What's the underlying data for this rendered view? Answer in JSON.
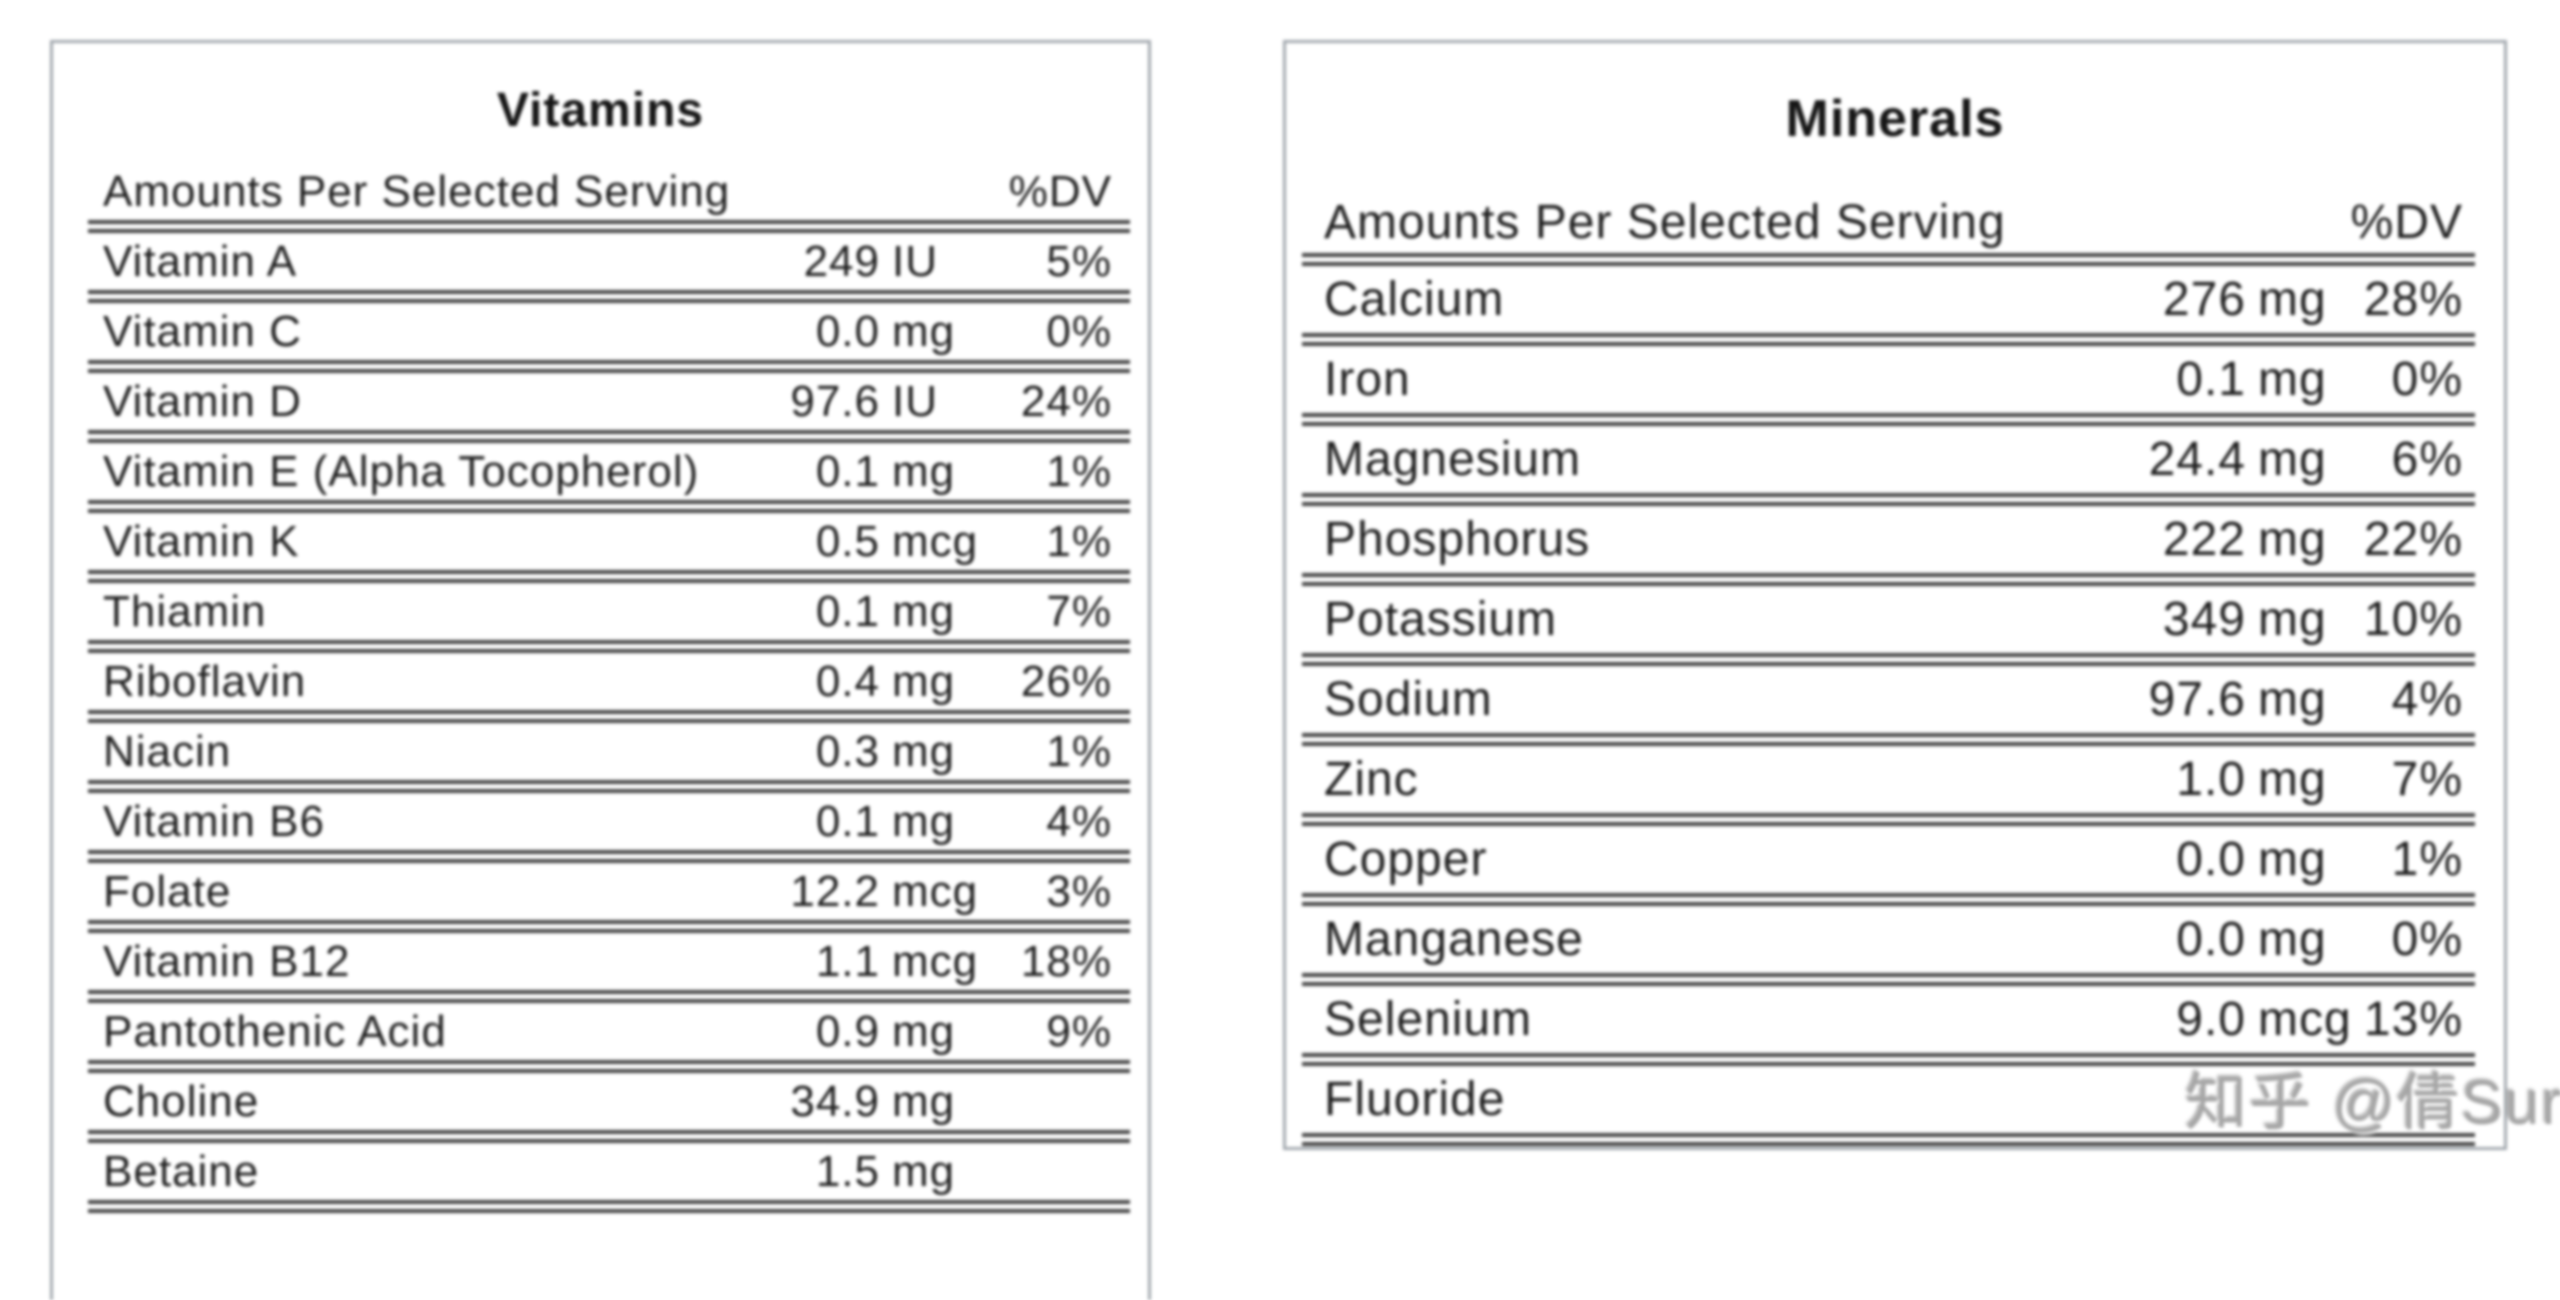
{
  "watermark": {
    "text": "知乎 @倩Sur"
  },
  "colors": {
    "text": "#1f1f1f",
    "rule": "#454545",
    "box_border": "#a3a9af",
    "watermark": "#a6a6a6",
    "background": "#ffffff"
  },
  "tables": [
    {
      "title": "Vitamins",
      "header": {
        "label": "Amounts Per Selected Serving",
        "dv_label": "%DV"
      },
      "rows": [
        {
          "label": "Vitamin A",
          "num": "249",
          "unit": "IU",
          "dv": "5%"
        },
        {
          "label": "Vitamin C",
          "num": "0.0",
          "unit": "mg",
          "dv": "0%"
        },
        {
          "label": "Vitamin D",
          "num": "97.6",
          "unit": "IU",
          "dv": "24%"
        },
        {
          "label": "Vitamin E (Alpha Tocopherol)",
          "num": "0.1",
          "unit": "mg",
          "dv": "1%"
        },
        {
          "label": "Vitamin K",
          "num": "0.5",
          "unit": "mcg",
          "dv": "1%"
        },
        {
          "label": "Thiamin",
          "num": "0.1",
          "unit": "mg",
          "dv": "7%"
        },
        {
          "label": "Riboflavin",
          "num": "0.4",
          "unit": "mg",
          "dv": "26%"
        },
        {
          "label": "Niacin",
          "num": "0.3",
          "unit": "mg",
          "dv": "1%"
        },
        {
          "label": "Vitamin B6",
          "num": "0.1",
          "unit": "mg",
          "dv": "4%"
        },
        {
          "label": "Folate",
          "num": "12.2",
          "unit": "mcg",
          "dv": "3%"
        },
        {
          "label": "Vitamin B12",
          "num": "1.1",
          "unit": "mcg",
          "dv": "18%"
        },
        {
          "label": "Pantothenic Acid",
          "num": "0.9",
          "unit": "mg",
          "dv": "9%"
        },
        {
          "label": "Choline",
          "num": "34.9",
          "unit": "mg",
          "dv": ""
        },
        {
          "label": "Betaine",
          "num": "1.5",
          "unit": "mg",
          "dv": ""
        }
      ]
    },
    {
      "title": "Minerals",
      "header": {
        "label": "Amounts Per Selected Serving",
        "dv_label": "%DV"
      },
      "rows": [
        {
          "label": "Calcium",
          "num": "276",
          "unit": "mg",
          "dv": "28%"
        },
        {
          "label": "Iron",
          "num": "0.1",
          "unit": "mg",
          "dv": "0%"
        },
        {
          "label": "Magnesium",
          "num": "24.4",
          "unit": "mg",
          "dv": "6%"
        },
        {
          "label": "Phosphorus",
          "num": "222",
          "unit": "mg",
          "dv": "22%"
        },
        {
          "label": "Potassium",
          "num": "349",
          "unit": "mg",
          "dv": "10%"
        },
        {
          "label": "Sodium",
          "num": "97.6",
          "unit": "mg",
          "dv": "4%"
        },
        {
          "label": "Zinc",
          "num": "1.0",
          "unit": "mg",
          "dv": "7%"
        },
        {
          "label": "Copper",
          "num": "0.0",
          "unit": "mg",
          "dv": "1%"
        },
        {
          "label": "Manganese",
          "num": "0.0",
          "unit": "mg",
          "dv": "0%"
        },
        {
          "label": "Selenium",
          "num": "9.0",
          "unit": "mcg",
          "dv": "13%"
        },
        {
          "label": "Fluoride",
          "num": "",
          "unit": "",
          "dv": ""
        }
      ]
    }
  ]
}
